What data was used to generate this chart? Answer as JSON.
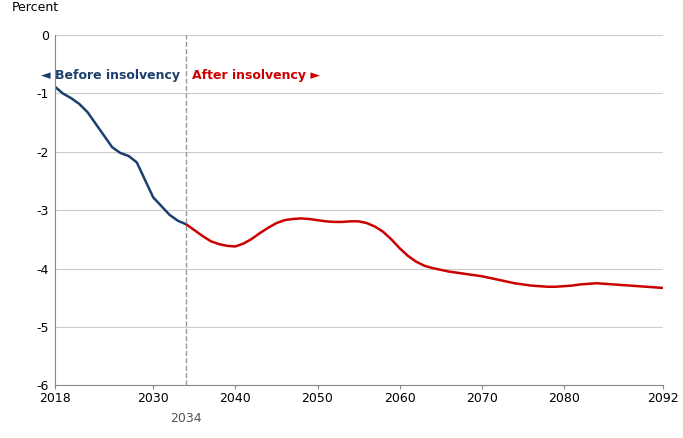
{
  "ylabel_top": "Percent",
  "xlim": [
    2018,
    2092
  ],
  "ylim": [
    -6,
    0
  ],
  "yticks": [
    0,
    -1,
    -2,
    -3,
    -4,
    -5,
    -6
  ],
  "xticks": [
    2018,
    2030,
    2040,
    2050,
    2060,
    2070,
    2080,
    2092
  ],
  "insolvency_year": 2034,
  "blue_color": "#1c3f6e",
  "red_color": "#cc0000",
  "dashed_color": "#999999",
  "background_color": "#ffffff",
  "grid_color": "#cccccc",
  "before_label": "◄ Before insolvency",
  "after_label": "After insolvency ►",
  "blue_x": [
    2018,
    2019,
    2020,
    2021,
    2022,
    2023,
    2024,
    2025,
    2026,
    2027,
    2028,
    2029,
    2030,
    2031,
    2032,
    2033,
    2034
  ],
  "blue_y": [
    -0.88,
    -1.0,
    -1.08,
    -1.18,
    -1.32,
    -1.52,
    -1.72,
    -1.92,
    -2.02,
    -2.07,
    -2.18,
    -2.48,
    -2.78,
    -2.93,
    -3.08,
    -3.18,
    -3.24
  ],
  "red_x": [
    2034,
    2035,
    2036,
    2037,
    2038,
    2039,
    2040,
    2041,
    2042,
    2043,
    2044,
    2045,
    2046,
    2047,
    2048,
    2049,
    2050,
    2051,
    2052,
    2053,
    2054,
    2055,
    2056,
    2057,
    2058,
    2059,
    2060,
    2061,
    2062,
    2063,
    2064,
    2065,
    2066,
    2067,
    2068,
    2069,
    2070,
    2071,
    2072,
    2073,
    2074,
    2075,
    2076,
    2077,
    2078,
    2079,
    2080,
    2081,
    2082,
    2083,
    2084,
    2085,
    2086,
    2087,
    2088,
    2089,
    2090,
    2091,
    2092
  ],
  "red_y": [
    -3.24,
    -3.34,
    -3.44,
    -3.53,
    -3.58,
    -3.61,
    -3.62,
    -3.57,
    -3.49,
    -3.39,
    -3.3,
    -3.22,
    -3.17,
    -3.15,
    -3.14,
    -3.15,
    -3.17,
    -3.19,
    -3.2,
    -3.2,
    -3.19,
    -3.19,
    -3.22,
    -3.28,
    -3.37,
    -3.5,
    -3.65,
    -3.78,
    -3.88,
    -3.95,
    -3.99,
    -4.02,
    -4.05,
    -4.07,
    -4.09,
    -4.11,
    -4.13,
    -4.16,
    -4.19,
    -4.22,
    -4.25,
    -4.27,
    -4.29,
    -4.3,
    -4.31,
    -4.31,
    -4.3,
    -4.29,
    -4.27,
    -4.26,
    -4.25,
    -4.26,
    -4.27,
    -4.28,
    -4.29,
    -4.3,
    -4.31,
    -4.32,
    -4.33
  ]
}
